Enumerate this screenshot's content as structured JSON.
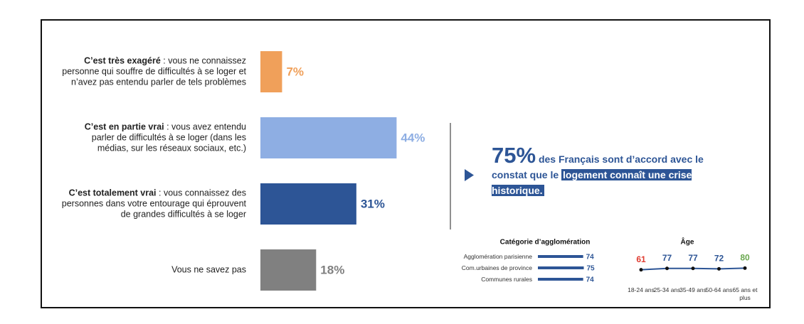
{
  "chart_data": [
    {
      "type": "hbar",
      "categories": [
        "C’est très exagéré",
        "C’est en partie vrai",
        "C’est totalement vrai",
        "Vous ne savez pas"
      ],
      "descriptions": [
        " : vous ne connaissez personne qui souffre de difficultés à se loger et n’avez pas entendu parler de tels problèmes",
        " : vous avez entendu parler de difficultés à se loger (dans les médias, sur les réseaux sociaux, etc.)",
        " : vous connaissez des personnes dans votre entourage qui éprouvent de grandes difficultés à se loger",
        null
      ],
      "values": [
        7,
        44,
        31,
        18
      ],
      "value_labels": [
        "7%",
        "44%",
        "31%",
        "18%"
      ],
      "colors": [
        "#f0a05a",
        "#8eaee3",
        "#2d5596",
        "#808080"
      ]
    },
    {
      "type": "hbar-small",
      "title": "Catégorie d’agglomération",
      "categories": [
        "Agglomération parisienne",
        "Com.urbaines de province",
        "Communes rurales"
      ],
      "values": [
        74,
        75,
        74
      ],
      "color": "#2d5596"
    },
    {
      "type": "line",
      "title": "Âge",
      "categories": [
        "18-24 ans",
        "25-34 ans",
        "35-49 ans",
        "50-64 ans",
        "65 ans et plus"
      ],
      "values": [
        61,
        77,
        77,
        72,
        80
      ],
      "color": "#2d5596",
      "label_colors": [
        "#e03c31",
        "#2d5596",
        "#2d5596",
        "#2d5596",
        "#6aa84f"
      ]
    }
  ],
  "callout": {
    "figure": "75%",
    "text": "des Français sont d’accord avec le constat que le",
    "highlight": "logement connaît une crise historique."
  }
}
